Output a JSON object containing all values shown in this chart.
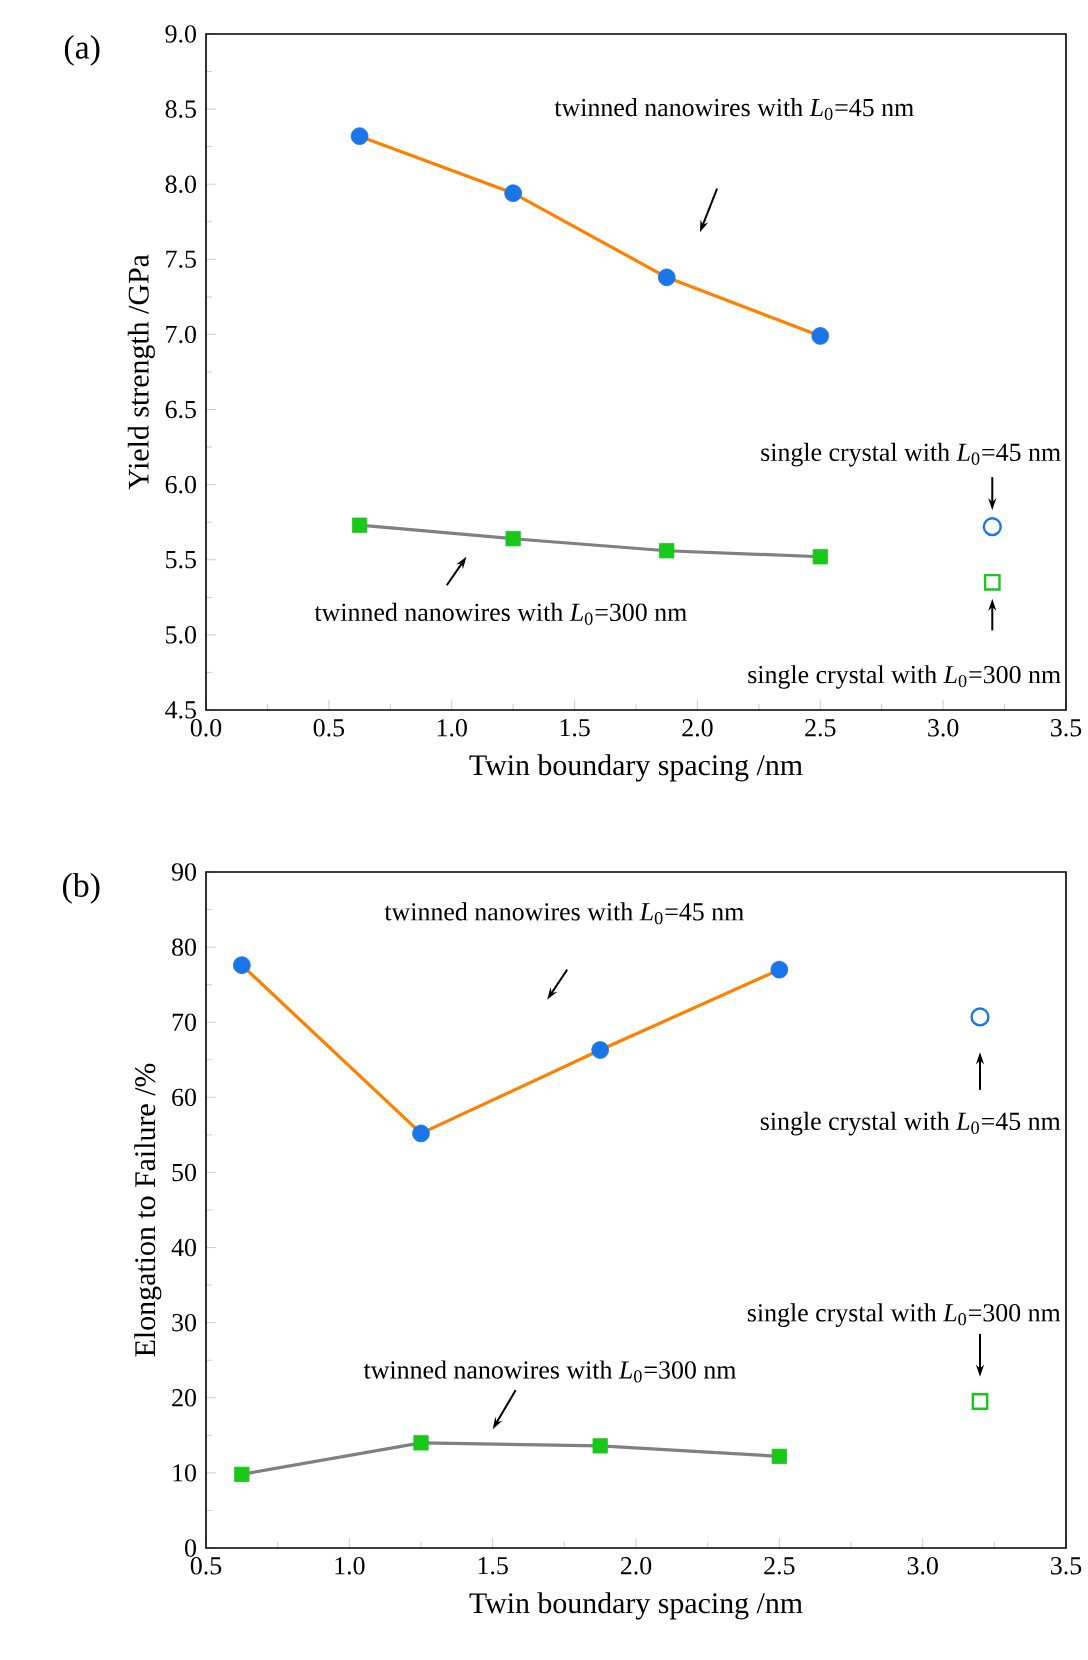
{
  "chart_data": [
    {
      "type": "line",
      "title": "(a)",
      "xlabel": "Twin boundary spacing /nm",
      "ylabel": "Yield strength /GPa",
      "xlim": [
        0,
        3.5
      ],
      "ylim": [
        4.5,
        9.0
      ],
      "xticks": [
        {
          "value": 0,
          "label": "0.0"
        },
        0.5,
        {
          "value": 1,
          "label": "1.0"
        },
        1.5,
        {
          "value": 2,
          "label": "2.0"
        },
        2.5,
        {
          "value": 3,
          "label": "3.0"
        },
        3.5
      ],
      "yticks": [
        4.5,
        {
          "value": 5,
          "label": "5.0"
        },
        5.5,
        {
          "value": 6,
          "label": "6.0"
        },
        6.5,
        {
          "value": 7,
          "label": "7.0"
        },
        7.5,
        {
          "value": 8,
          "label": "8.0"
        },
        8.5,
        {
          "value": 9,
          "label": "9.0"
        }
      ],
      "annotations": [
        "twinned nanowires with *L*$_{0}$=45 nm",
        "twinned nanowires with *L*$_{0}$=300 nm",
        "single crystal with *L*$_{0}$=45 nm",
        "single crystal with *L*$_{0}$=300 nm"
      ],
      "series": [
        {
          "type": "line",
          "color": "#ff8000",
          "marker": "none",
          "x": [
            0.625,
            1.25,
            1.875,
            2.5
          ],
          "values": [
            8.32,
            7.94,
            7.38,
            6.99
          ]
        },
        {
          "type": "scatter",
          "color": "#1a75e8",
          "marker": "circle",
          "x": [
            0.625,
            1.25,
            1.875,
            2.5
          ],
          "values": [
            8.32,
            7.94,
            7.38,
            6.99
          ]
        },
        {
          "type": "line",
          "color": "#808080",
          "marker": "none",
          "x": [
            0.625,
            1.25,
            1.875,
            2.5
          ],
          "values": [
            5.73,
            5.64,
            5.56,
            5.52
          ]
        },
        {
          "type": "scatter",
          "color": "#19c819",
          "marker": "square",
          "x": [
            0.625,
            1.25,
            1.875,
            2.5
          ],
          "values": [
            5.73,
            5.64,
            5.56,
            5.52
          ]
        },
        {
          "type": "scatter",
          "color": "#1a75e8",
          "marker": "circle",
          "x": [
            3.2
          ],
          "values": [
            5.72
          ]
        },
        {
          "type": "scatter",
          "color": "#19c819",
          "marker": "square",
          "x": [
            3.2
          ],
          "values": [
            5.35
          ]
        }
      ]
    },
    {
      "type": "line",
      "title": "(b)",
      "xlabel": "Twin boundary spacing /nm",
      "ylabel": "Elongation to Failure /%",
      "xlim": [
        0.5,
        3.5
      ],
      "ylim": [
        0,
        90
      ],
      "xticks": [
        0.5,
        {
          "value": 1,
          "label": "1.0"
        },
        1.5,
        {
          "value": 2,
          "label": "2.0"
        },
        2.5,
        {
          "value": 3,
          "label": "3.0"
        },
        3.5
      ],
      "yticks": [
        0,
        10,
        20,
        30,
        40,
        50,
        60,
        70,
        80,
        90
      ],
      "annotations": [
        "twinned nanowires with *L*$_{0}$=45 nm",
        "twinned nanowires with *L*$_{0}$=300 nm",
        "single crystal with *L*$_{0}$=45 nm",
        "single crystal with *L*$_{0}$=300 nm"
      ],
      "series": [
        {
          "type": "line",
          "color": "#ff8000",
          "marker": "none",
          "x": [
            0.625,
            1.25,
            1.875,
            2.5
          ],
          "values": [
            77.6,
            55.2,
            66.3,
            77.0
          ]
        },
        {
          "type": "scatter",
          "color": "#1a75e8",
          "marker": "circle",
          "x": [
            0.625,
            1.25,
            1.875,
            2.5
          ],
          "values": [
            77.6,
            55.2,
            66.3,
            77.0
          ]
        },
        {
          "type": "line",
          "color": "#808080",
          "marker": "none",
          "x": [
            0.625,
            1.25,
            1.875,
            2.5
          ],
          "values": [
            9.8,
            14.0,
            13.6,
            12.2
          ]
        },
        {
          "type": "scatter",
          "color": "#19c819",
          "marker": "square",
          "x": [
            0.625,
            1.25,
            1.875,
            2.5
          ],
          "values": [
            9.8,
            14.0,
            13.6,
            12.2
          ]
        },
        {
          "type": "scatter",
          "color": "#1a75e8",
          "marker": "circle",
          "x": [
            3.2
          ],
          "values": [
            70.7
          ]
        },
        {
          "type": "scatter",
          "color": "#19c819",
          "marker": "square",
          "x": [
            3.2
          ],
          "values": [
            19.5
          ]
        }
      ]
    }
  ]
}
